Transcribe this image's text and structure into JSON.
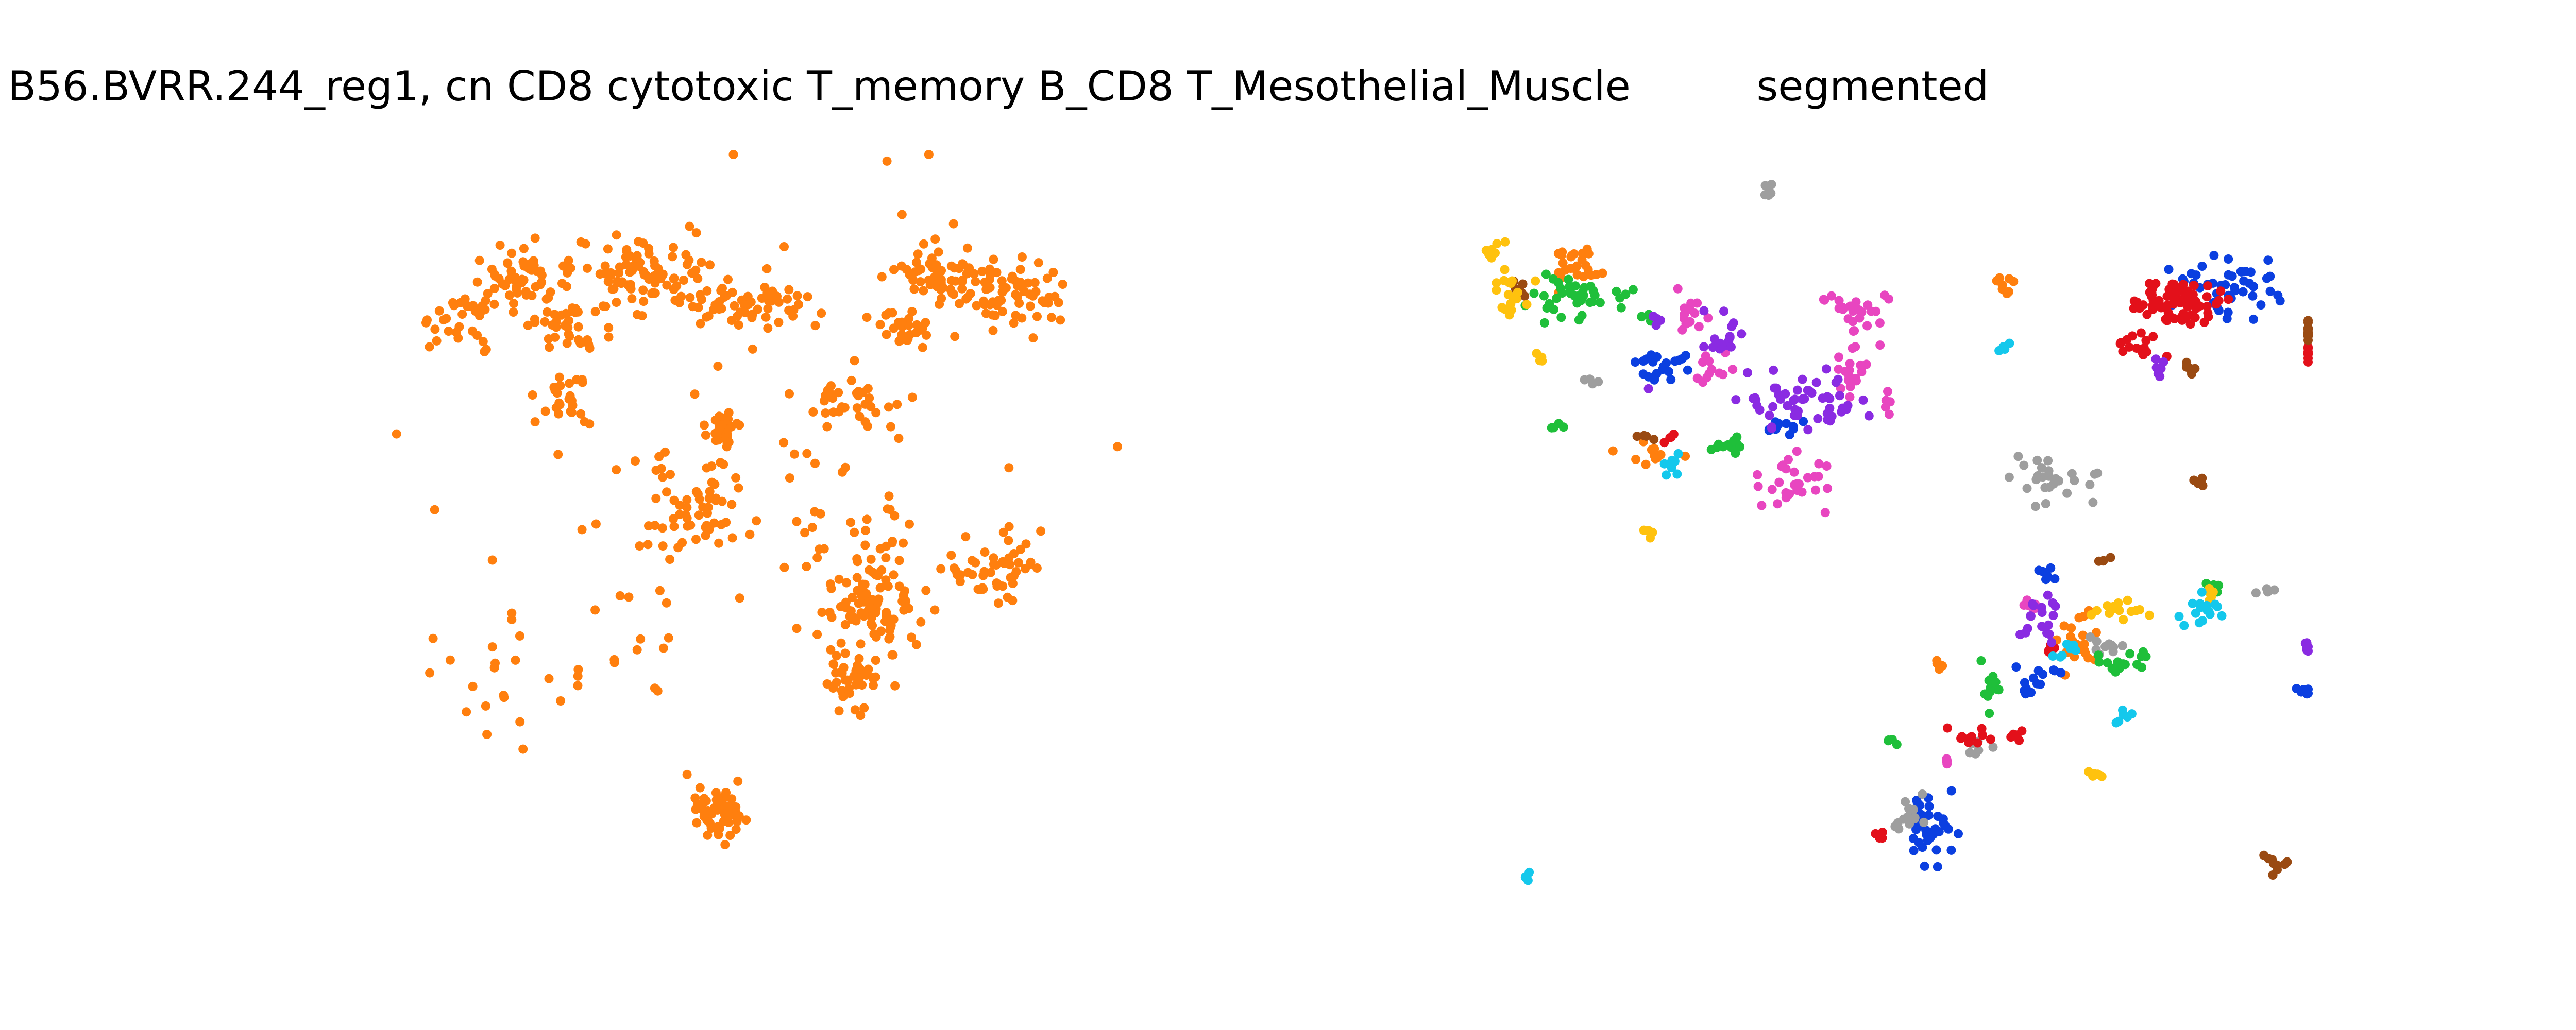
{
  "figure": {
    "left_title": "B56.BVRR.244_reg1, cn CD8 cytotoxic T_memory B_CD8 T_Mesothelial_Muscle",
    "right_title": "segmented"
  },
  "palette": {
    "orange": "#ff7f0e",
    "blue": "#0b3fe0",
    "gray": "#9e9e9e",
    "green": "#1fbf3a",
    "red": "#e3101a",
    "pink": "#e846c0",
    "purple": "#8a2be2",
    "brown": "#9a4a12",
    "yellow": "#ffc20e",
    "cyan": "#14c8ec"
  },
  "chart_data": [
    {
      "type": "scatter",
      "title": "B56.BVRR.244_reg1, cn CD8 cytotoxic T_memory B_CD8 T_Mesothelial_Muscle",
      "axes_visible": false,
      "grid": false,
      "xlim": [
        0,
        1000
      ],
      "ylim": [
        0,
        1000
      ],
      "series": [
        {
          "color": "#ff7f0e",
          "clusters": [
            {
              "cx": 420,
              "cy": 880,
              "sx": 18,
              "sy": 18,
              "n": 55
            },
            {
              "cx": 610,
              "cy": 605,
              "sx": 28,
              "sy": 32,
              "n": 90
            },
            {
              "cx": 740,
              "cy": 555,
              "sx": 26,
              "sy": 18,
              "n": 50
            },
            {
              "cx": 580,
              "cy": 700,
              "sx": 22,
              "sy": 20,
              "n": 45
            },
            {
              "cx": 390,
              "cy": 460,
              "sx": 25,
              "sy": 30,
              "n": 50
            },
            {
              "cx": 430,
              "cy": 370,
              "sx": 15,
              "sy": 12,
              "n": 35
            },
            {
              "cx": 240,
              "cy": 230,
              "sx": 24,
              "sy": 14,
              "n": 35
            },
            {
              "cx": 460,
              "cy": 200,
              "sx": 38,
              "sy": 18,
              "n": 60
            },
            {
              "cx": 330,
              "cy": 160,
              "sx": 40,
              "sy": 25,
              "n": 80
            },
            {
              "cx": 190,
              "cy": 165,
              "sx": 30,
              "sy": 18,
              "n": 50
            },
            {
              "cx": 120,
              "cy": 220,
              "sx": 28,
              "sy": 22,
              "n": 35
            },
            {
              "cx": 580,
              "cy": 330,
              "sx": 30,
              "sy": 18,
              "n": 30
            },
            {
              "cx": 760,
              "cy": 190,
              "sx": 38,
              "sy": 22,
              "n": 70
            },
            {
              "cx": 690,
              "cy": 160,
              "sx": 28,
              "sy": 20,
              "n": 55
            },
            {
              "cx": 640,
              "cy": 235,
              "sx": 20,
              "sy": 12,
              "n": 25
            },
            {
              "cx": 250,
              "cy": 330,
              "sx": 15,
              "sy": 18,
              "n": 25
            },
            {
              "cx": 540,
              "cy": 500,
              "sx": 50,
              "sy": 70,
              "n": 40
            },
            {
              "cx": 330,
              "cy": 600,
              "sx": 30,
              "sy": 60,
              "n": 20
            },
            {
              "cx": 200,
              "cy": 700,
              "sx": 60,
              "sy": 80,
              "n": 25
            },
            {
              "cx": 500,
              "cy": 300,
              "sx": 200,
              "sy": 160,
              "n": 40
            }
          ]
        }
      ]
    },
    {
      "type": "scatter",
      "title": "segmented",
      "axes_visible": false,
      "grid": false,
      "xlim": [
        0,
        1000
      ],
      "ylim": [
        0,
        1000
      ],
      "series": [
        {
          "color": "#ff7f0e",
          "clusters": [
            {
              "cx": 140,
              "cy": 150,
              "sx": 18,
              "sy": 18,
              "n": 25
            },
            {
              "cx": 230,
              "cy": 400,
              "sx": 20,
              "sy": 12,
              "n": 12
            },
            {
              "cx": 730,
              "cy": 650,
              "sx": 12,
              "sy": 22,
              "n": 22
            },
            {
              "cx": 640,
              "cy": 175,
              "sx": 12,
              "sy": 8,
              "n": 8
            },
            {
              "cx": 565,
              "cy": 680,
              "sx": 6,
              "sy": 6,
              "n": 5
            }
          ]
        },
        {
          "color": "#0b3fe0",
          "clusters": [
            {
              "cx": 555,
              "cy": 895,
              "sx": 14,
              "sy": 22,
              "n": 40
            },
            {
              "cx": 910,
              "cy": 175,
              "sx": 30,
              "sy": 22,
              "n": 45
            },
            {
              "cx": 250,
              "cy": 285,
              "sx": 18,
              "sy": 10,
              "n": 22
            },
            {
              "cx": 380,
              "cy": 365,
              "sx": 12,
              "sy": 8,
              "n": 14
            },
            {
              "cx": 680,
              "cy": 700,
              "sx": 12,
              "sy": 12,
              "n": 14
            },
            {
              "cx": 690,
              "cy": 565,
              "sx": 8,
              "sy": 6,
              "n": 6
            },
            {
              "cx": 1000,
              "cy": 720,
              "sx": 6,
              "sy": 4,
              "n": 6
            }
          ]
        },
        {
          "color": "#9e9e9e",
          "clusters": [
            {
              "cx": 530,
              "cy": 890,
              "sx": 10,
              "sy": 16,
              "n": 14
            },
            {
              "cx": 700,
              "cy": 435,
              "sx": 28,
              "sy": 16,
              "n": 26
            },
            {
              "cx": 760,
              "cy": 660,
              "sx": 10,
              "sy": 10,
              "n": 10
            },
            {
              "cx": 160,
              "cy": 300,
              "sx": 5,
              "sy": 5,
              "n": 4
            },
            {
              "cx": 365,
              "cy": 55,
              "sx": 6,
              "sy": 8,
              "n": 6
            },
            {
              "cx": 610,
              "cy": 790,
              "sx": 8,
              "sy": 6,
              "n": 6
            },
            {
              "cx": 950,
              "cy": 585,
              "sx": 5,
              "sy": 5,
              "n": 4
            }
          ]
        },
        {
          "color": "#1fbf3a",
          "clusters": [
            {
              "cx": 140,
              "cy": 190,
              "sx": 30,
              "sy": 16,
              "n": 40
            },
            {
              "cx": 320,
              "cy": 390,
              "sx": 10,
              "sy": 10,
              "n": 12
            },
            {
              "cx": 625,
              "cy": 710,
              "sx": 6,
              "sy": 12,
              "n": 12
            },
            {
              "cx": 780,
              "cy": 680,
              "sx": 16,
              "sy": 8,
              "n": 18
            },
            {
              "cx": 220,
              "cy": 215,
              "sx": 6,
              "sy": 5,
              "n": 5
            },
            {
              "cx": 510,
              "cy": 780,
              "sx": 5,
              "sy": 5,
              "n": 4
            },
            {
              "cx": 890,
              "cy": 580,
              "sx": 5,
              "sy": 5,
              "n": 4
            },
            {
              "cx": 120,
              "cy": 365,
              "sx": 5,
              "sy": 5,
              "n": 4
            }
          ]
        },
        {
          "color": "#e3101a",
          "clusters": [
            {
              "cx": 840,
              "cy": 195,
              "sx": 28,
              "sy": 15,
              "n": 80
            },
            {
              "cx": 800,
              "cy": 255,
              "sx": 14,
              "sy": 8,
              "n": 16
            },
            {
              "cx": 1150,
              "cy": 270,
              "sx": 6,
              "sy": 6,
              "n": 8
            },
            {
              "cx": 610,
              "cy": 780,
              "sx": 12,
              "sy": 6,
              "n": 10
            },
            {
              "cx": 495,
              "cy": 915,
              "sx": 6,
              "sy": 4,
              "n": 5
            },
            {
              "cx": 660,
              "cy": 780,
              "sx": 6,
              "sy": 4,
              "n": 5
            },
            {
              "cx": 250,
              "cy": 380,
              "sx": 5,
              "sy": 5,
              "n": 4
            },
            {
              "cx": 700,
              "cy": 660,
              "sx": 5,
              "sy": 5,
              "n": 4
            }
          ]
        },
        {
          "color": "#e846c0",
          "clusters": [
            {
              "cx": 470,
              "cy": 210,
              "sx": 20,
              "sy": 14,
              "n": 26
            },
            {
              "cx": 460,
              "cy": 285,
              "sx": 8,
              "sy": 20,
              "n": 18
            },
            {
              "cx": 275,
              "cy": 215,
              "sx": 10,
              "sy": 12,
              "n": 14
            },
            {
              "cx": 395,
              "cy": 440,
              "sx": 20,
              "sy": 16,
              "n": 28
            },
            {
              "cx": 300,
              "cy": 290,
              "sx": 10,
              "sy": 10,
              "n": 12
            },
            {
              "cx": 675,
              "cy": 600,
              "sx": 6,
              "sy": 6,
              "n": 6
            },
            {
              "cx": 500,
              "cy": 330,
              "sx": 6,
              "sy": 6,
              "n": 6
            },
            {
              "cx": 580,
              "cy": 815,
              "sx": 5,
              "sy": 5,
              "n": 4
            }
          ]
        },
        {
          "color": "#8a2be2",
          "clusters": [
            {
              "cx": 400,
              "cy": 330,
              "sx": 40,
              "sy": 18,
              "n": 55
            },
            {
              "cx": 315,
              "cy": 240,
              "sx": 12,
              "sy": 18,
              "n": 16
            },
            {
              "cx": 690,
              "cy": 620,
              "sx": 14,
              "sy": 16,
              "n": 18
            },
            {
              "cx": 830,
              "cy": 285,
              "sx": 8,
              "sy": 5,
              "n": 6
            },
            {
              "cx": 1000,
              "cy": 660,
              "sx": 6,
              "sy": 4,
              "n": 6
            },
            {
              "cx": 230,
              "cy": 225,
              "sx": 5,
              "sy": 5,
              "n": 4
            }
          ]
        },
        {
          "color": "#9a4a12",
          "clusters": [
            {
              "cx": 1130,
              "cy": 235,
              "sx": 12,
              "sy": 8,
              "n": 16
            },
            {
              "cx": 960,
              "cy": 950,
              "sx": 10,
              "sy": 6,
              "n": 10
            },
            {
              "cx": 860,
              "cy": 290,
              "sx": 6,
              "sy": 4,
              "n": 6
            },
            {
              "cx": 755,
              "cy": 540,
              "sx": 5,
              "sy": 5,
              "n": 4
            },
            {
              "cx": 870,
              "cy": 435,
              "sx": 5,
              "sy": 5,
              "n": 4
            },
            {
              "cx": 220,
              "cy": 380,
              "sx": 5,
              "sy": 5,
              "n": 4
            },
            {
              "cx": 70,
              "cy": 180,
              "sx": 6,
              "sy": 6,
              "n": 6
            }
          ]
        },
        {
          "color": "#ffc20e",
          "clusters": [
            {
              "cx": 60,
              "cy": 190,
              "sx": 14,
              "sy": 18,
              "n": 18
            },
            {
              "cx": 40,
              "cy": 130,
              "sx": 6,
              "sy": 8,
              "n": 8
            },
            {
              "cx": 780,
              "cy": 610,
              "sx": 14,
              "sy": 6,
              "n": 14
            },
            {
              "cx": 95,
              "cy": 270,
              "sx": 5,
              "sy": 5,
              "n": 4
            },
            {
              "cx": 880,
              "cy": 590,
              "sx": 6,
              "sy": 5,
              "n": 5
            },
            {
              "cx": 750,
              "cy": 830,
              "sx": 6,
              "sy": 4,
              "n": 5
            },
            {
              "cx": 225,
              "cy": 505,
              "sx": 5,
              "sy": 5,
              "n": 4
            }
          ]
        },
        {
          "color": "#14c8ec",
          "clusters": [
            {
              "cx": 880,
              "cy": 610,
              "sx": 14,
              "sy": 10,
              "n": 16
            },
            {
              "cx": 710,
              "cy": 660,
              "sx": 8,
              "sy": 6,
              "n": 8
            },
            {
              "cx": 250,
              "cy": 410,
              "sx": 6,
              "sy": 10,
              "n": 8
            },
            {
              "cx": 80,
              "cy": 970,
              "sx": 5,
              "sy": 5,
              "n": 4
            },
            {
              "cx": 780,
              "cy": 750,
              "sx": 6,
              "sy": 6,
              "n": 6
            },
            {
              "cx": 640,
              "cy": 255,
              "sx": 5,
              "sy": 5,
              "n": 4
            }
          ]
        }
      ]
    }
  ]
}
